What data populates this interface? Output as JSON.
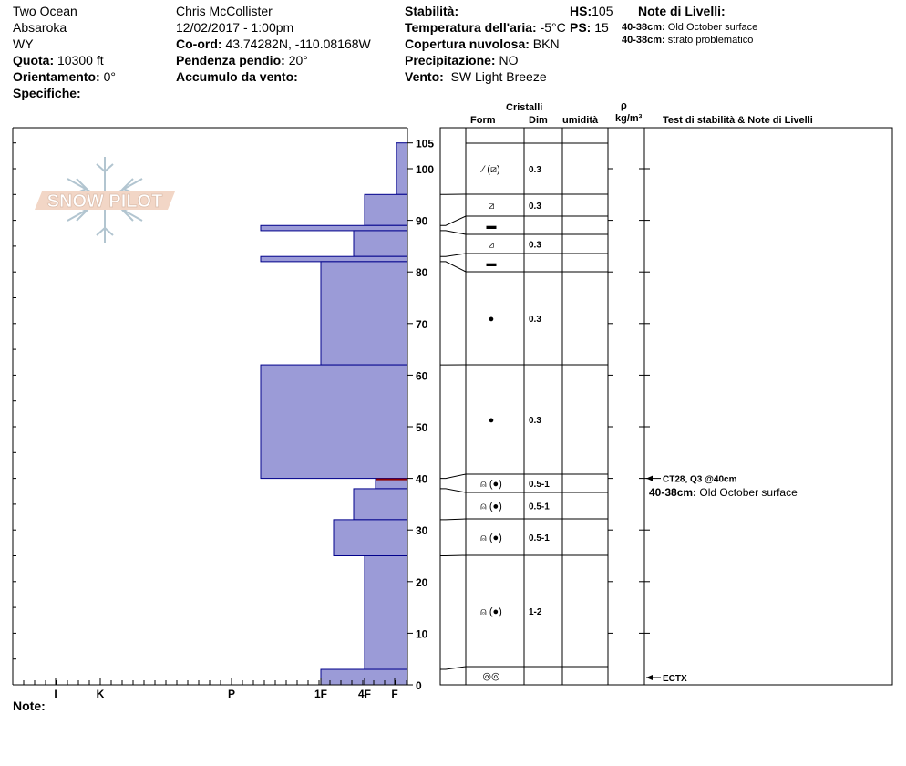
{
  "header": {
    "location": "Two Ocean",
    "range": "Absaroka",
    "state": "WY",
    "quota_label": "Quota:",
    "quota_value": "10300 ft",
    "orient_label": "Orientamento:",
    "orient_value": "0°",
    "spec_label": "Specifiche:",
    "observer": "Chris McCollister",
    "datetime": "12/02/2017 - 1:00pm",
    "coord_label": "Co-ord:",
    "coord_value": "43.74282N, -110.08168W",
    "slope_label": "Pendenza pendio:",
    "slope_value": "20°",
    "wind_load_label": "Accumulo da vento:",
    "stab_label": "Stabilità:",
    "air_temp_label": "Temperatura dell'aria:",
    "air_temp_value": "-5°C",
    "cloud_label": "Copertura nuvolosa:",
    "cloud_value": "BKN",
    "precip_label": "Precipitazione:",
    "precip_value": "NO",
    "wind_label": "Vento:",
    "wind_value": "SW Light Breeze",
    "hs_label": "HS:",
    "hs_value": "105",
    "ps_label": "PS:",
    "ps_value": "15",
    "notes_title": "Note di Livelli:",
    "note1_range": "40-38cm:",
    "note1_text": "Old October surface",
    "note2_range": "40-38cm:",
    "note2_text": "strato problematico"
  },
  "columns": {
    "cristalli": "Cristalli",
    "form": "Form",
    "dim": "Dim",
    "umidita": "umidità",
    "rho": "ρ",
    "density_unit": "kg/m³",
    "tests": "Test di stabilità & Note di Livelli"
  },
  "footer": {
    "note_label": "Note:"
  },
  "logo_text": "SNOW PILOT",
  "colors": {
    "layer_fill": "#9b9bd7",
    "layer_stroke": "#00008b",
    "weak_layer": "#8b0000"
  },
  "chart_data": {
    "type": "snow-profile",
    "y_range": [
      0,
      105
    ],
    "y_ticks": [
      0,
      10,
      20,
      30,
      40,
      50,
      60,
      70,
      80,
      90,
      100,
      105
    ],
    "hardness_labels": [
      "I",
      "K",
      "P",
      "1F",
      "4F",
      "F"
    ],
    "layers": [
      {
        "top": 105,
        "bottom": 95,
        "hardness": "F",
        "form": "⁄ (⧄)",
        "dim": "0.3"
      },
      {
        "top": 95,
        "bottom": 89,
        "hardness": "4F",
        "form": "⧄",
        "dim": "0.3"
      },
      {
        "top": 89,
        "bottom": 88,
        "hardness": "P",
        "form": "▬",
        "dim": ""
      },
      {
        "top": 88,
        "bottom": 83,
        "hardness": "4F-",
        "form": "⧄",
        "dim": "0.3"
      },
      {
        "top": 83,
        "bottom": 82,
        "hardness": "P",
        "form": "▬",
        "dim": ""
      },
      {
        "top": 82,
        "bottom": 62,
        "hardness": "1F",
        "form": "●",
        "dim": "0.3"
      },
      {
        "top": 62,
        "bottom": 40,
        "hardness": "P",
        "form": "●",
        "dim": "0.3"
      },
      {
        "top": 40,
        "bottom": 38,
        "hardness": "4F+",
        "form": "⍝ (●)",
        "dim": "0.5-1"
      },
      {
        "top": 38,
        "bottom": 32,
        "hardness": "4F-",
        "form": "⍝ (●)",
        "dim": "0.5-1"
      },
      {
        "top": 32,
        "bottom": 25,
        "hardness": "1F-",
        "form": "⍝ (●)",
        "dim": "0.5-1"
      },
      {
        "top": 25,
        "bottom": 3,
        "hardness": "4F",
        "form": "⍝ (●)",
        "dim": "1-2"
      },
      {
        "top": 3,
        "bottom": 0,
        "hardness": "1F",
        "form": "◎◎",
        "dim": ""
      }
    ],
    "tests": [
      {
        "depth": 40,
        "label": "CT28, Q3 @40cm"
      },
      {
        "depth": 0,
        "label": "ECTX"
      }
    ],
    "layer_note": {
      "range": "40-38cm:",
      "text": "Old October surface"
    }
  }
}
